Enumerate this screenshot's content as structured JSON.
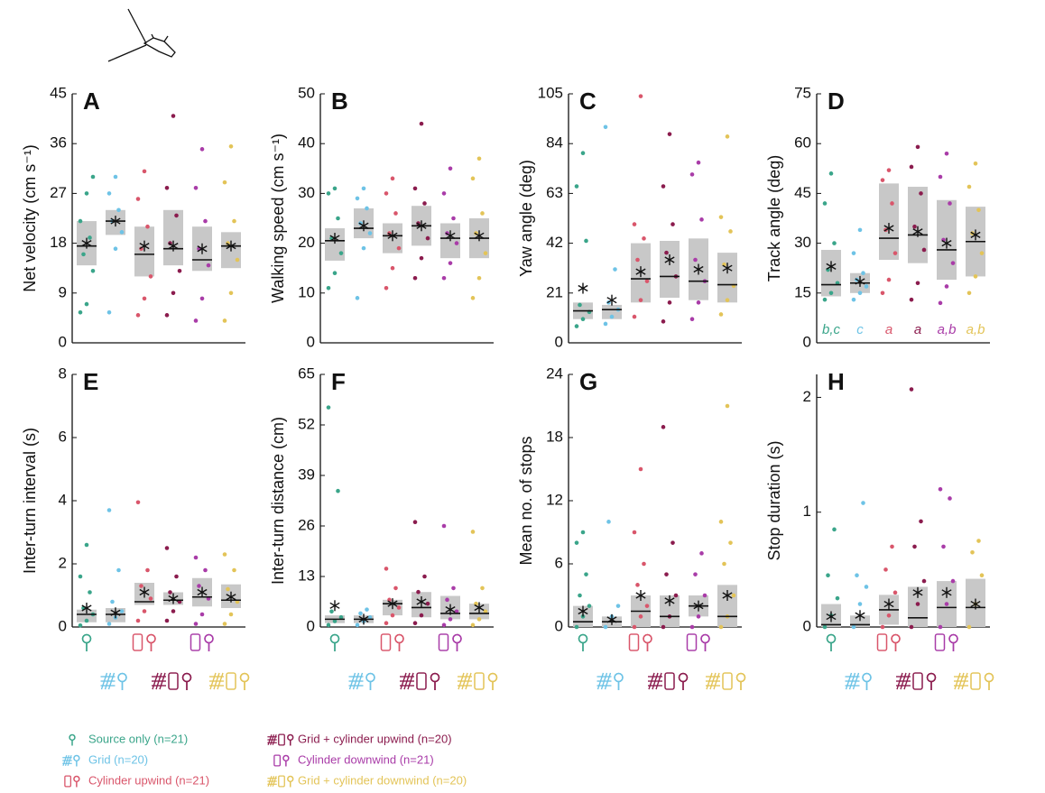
{
  "chart_data": [
    {
      "type": "box",
      "label": "A",
      "ylabel": "Net velocity (cm s⁻¹)",
      "ylim": [
        0,
        45
      ],
      "yticks": [
        0,
        9,
        18,
        27,
        36,
        45
      ],
      "groups": [
        {
          "q1": 14,
          "median": 17.5,
          "q3": 22,
          "mean": 18,
          "points": [
            5.5,
            7,
            13,
            16,
            19,
            22,
            27,
            30
          ]
        },
        {
          "q1": 19.5,
          "median": 22,
          "q3": 24,
          "mean": 22,
          "points": [
            5.5,
            17,
            20,
            22,
            24,
            27,
            30
          ]
        },
        {
          "q1": 12,
          "median": 16,
          "q3": 21,
          "mean": 17.5,
          "points": [
            5,
            8,
            12,
            17,
            21,
            26,
            31
          ]
        },
        {
          "q1": 14,
          "median": 17,
          "q3": 24,
          "mean": 17.5,
          "points": [
            5,
            9,
            13,
            18,
            23,
            28,
            41
          ]
        },
        {
          "q1": 13,
          "median": 15,
          "q3": 21,
          "mean": 17,
          "points": [
            4,
            8,
            14,
            17,
            22,
            28,
            35
          ]
        },
        {
          "q1": 13.5,
          "median": 17.5,
          "q3": 20,
          "mean": 17.5,
          "points": [
            4,
            9,
            15,
            18,
            22,
            29,
            35.5
          ]
        }
      ]
    },
    {
      "type": "box",
      "label": "B",
      "ylabel": "Walking speed (cm s⁻¹)",
      "ylim": [
        0,
        50
      ],
      "yticks": [
        0,
        10,
        20,
        30,
        40,
        50
      ],
      "groups": [
        {
          "q1": 16.5,
          "median": 20.5,
          "q3": 23,
          "mean": 21,
          "points": [
            11,
            14,
            18,
            21,
            25,
            30,
            31
          ]
        },
        {
          "q1": 21,
          "median": 23,
          "q3": 27,
          "mean": 23.5,
          "points": [
            9,
            19,
            22,
            24,
            27,
            29,
            31
          ]
        },
        {
          "q1": 18,
          "median": 21.5,
          "q3": 24,
          "mean": 21.5,
          "points": [
            11,
            15,
            19,
            22,
            26,
            30,
            33
          ]
        },
        {
          "q1": 19.5,
          "median": 23.5,
          "q3": 27.5,
          "mean": 23.5,
          "points": [
            13,
            17,
            21,
            24,
            28,
            31,
            44
          ]
        },
        {
          "q1": 17,
          "median": 21,
          "q3": 24,
          "mean": 21.5,
          "points": [
            13,
            16,
            20,
            22,
            25,
            30,
            35
          ]
        },
        {
          "q1": 17,
          "median": 21,
          "q3": 25,
          "mean": 21.5,
          "points": [
            9,
            13,
            18,
            22,
            26,
            33,
            37
          ]
        }
      ]
    },
    {
      "type": "box",
      "label": "C",
      "ylabel": "Yaw angle (deg)",
      "ylim": [
        0,
        105
      ],
      "yticks": [
        0,
        21,
        42,
        63,
        84,
        105
      ],
      "groups": [
        {
          "q1": 10,
          "median": 13.5,
          "q3": 17,
          "mean": 23,
          "points": [
            7,
            10,
            13,
            16,
            43,
            66,
            80
          ]
        },
        {
          "q1": 10,
          "median": 14,
          "q3": 16,
          "mean": 18,
          "points": [
            8,
            11,
            14,
            17,
            31,
            91
          ]
        },
        {
          "q1": 17,
          "median": 27,
          "q3": 42,
          "mean": 30,
          "points": [
            11,
            18,
            26,
            35,
            44,
            50,
            104
          ]
        },
        {
          "q1": 19,
          "median": 28,
          "q3": 43,
          "mean": 35,
          "points": [
            9,
            17,
            28,
            38,
            50,
            66,
            88
          ]
        },
        {
          "q1": 18,
          "median": 26,
          "q3": 44,
          "mean": 31,
          "points": [
            10,
            17,
            26,
            35,
            52,
            71,
            76
          ]
        },
        {
          "q1": 17,
          "median": 24.5,
          "q3": 38,
          "mean": 31.5,
          "points": [
            12,
            18,
            24,
            33,
            47,
            53,
            87
          ]
        }
      ]
    },
    {
      "type": "box",
      "label": "D",
      "ylabel": "Track angle (deg)",
      "ylim": [
        0,
        75
      ],
      "yticks": [
        0,
        15,
        30,
        45,
        60,
        75
      ],
      "letters": [
        "b,c",
        "c",
        "a",
        "a",
        "a,b",
        "a,b"
      ],
      "groups": [
        {
          "q1": 14,
          "median": 17.5,
          "q3": 28,
          "mean": 23,
          "points": [
            13,
            15,
            18,
            22,
            30,
            42,
            51
          ]
        },
        {
          "q1": 15,
          "median": 18,
          "q3": 21,
          "mean": 18.5,
          "points": [
            13,
            15,
            17,
            19,
            21,
            27,
            34
          ]
        },
        {
          "q1": 25,
          "median": 31.5,
          "q3": 48,
          "mean": 34.5,
          "points": [
            15,
            19,
            27,
            34,
            42,
            49,
            52
          ]
        },
        {
          "q1": 24,
          "median": 32.5,
          "q3": 47,
          "mean": 33.5,
          "points": [
            13,
            18,
            28,
            35,
            45,
            53,
            59
          ]
        },
        {
          "q1": 19,
          "median": 28,
          "q3": 43,
          "mean": 30,
          "points": [
            12,
            17,
            24,
            31,
            42,
            50,
            57
          ]
        },
        {
          "q1": 20,
          "median": 30.5,
          "q3": 41,
          "mean": 32.5,
          "points": [
            15,
            20,
            27,
            33,
            40,
            47,
            54
          ]
        }
      ]
    },
    {
      "type": "box",
      "label": "E",
      "ylabel": "Inter-turn interval (s)",
      "ylim": [
        0,
        8
      ],
      "yticks": [
        0,
        2,
        4,
        6,
        8
      ],
      "groups": [
        {
          "q1": 0.15,
          "median": 0.4,
          "q3": 0.55,
          "mean": 0.6,
          "points": [
            0.05,
            0.2,
            0.4,
            0.6,
            1.1,
            1.6,
            2.6
          ]
        },
        {
          "q1": 0.15,
          "median": 0.4,
          "q3": 0.6,
          "mean": 0.45,
          "points": [
            0.1,
            0.3,
            0.5,
            0.8,
            1.8,
            3.7
          ]
        },
        {
          "q1": 0.7,
          "median": 0.8,
          "q3": 1.4,
          "mean": 1.1,
          "points": [
            0.2,
            0.5,
            0.9,
            1.3,
            1.8,
            3.95
          ]
        },
        {
          "q1": 0.7,
          "median": 0.85,
          "q3": 1.1,
          "mean": 0.9,
          "points": [
            0.2,
            0.5,
            0.8,
            1.1,
            1.6,
            2.5
          ]
        },
        {
          "q1": 0.65,
          "median": 0.95,
          "q3": 1.55,
          "mean": 1.1,
          "points": [
            0.1,
            0.4,
            0.9,
            1.3,
            1.8,
            2.2
          ]
        },
        {
          "q1": 0.6,
          "median": 0.85,
          "q3": 1.35,
          "mean": 0.95,
          "points": [
            0.1,
            0.4,
            0.8,
            1.2,
            1.8,
            2.3
          ]
        }
      ]
    },
    {
      "type": "box",
      "label": "F",
      "ylabel": "Inter-turn distance (cm)",
      "ylim": [
        0,
        65
      ],
      "yticks": [
        0,
        13,
        26,
        39,
        52,
        65
      ],
      "groups": [
        {
          "q1": 1,
          "median": 2,
          "q3": 3,
          "mean": 5.5,
          "points": [
            0.5,
            1.5,
            2.5,
            4,
            35,
            56.5
          ]
        },
        {
          "q1": 1,
          "median": 2,
          "q3": 3,
          "mean": 2,
          "points": [
            0.5,
            1.5,
            2.5,
            3.5,
            4.5
          ]
        },
        {
          "q1": 3,
          "median": 6,
          "q3": 7,
          "mean": 6,
          "points": [
            1,
            3,
            5,
            7,
            10,
            15
          ]
        },
        {
          "q1": 2.5,
          "median": 5,
          "q3": 9,
          "mean": 6.5,
          "points": [
            1,
            3,
            6,
            9,
            13,
            27
          ]
        },
        {
          "q1": 2,
          "median": 3.5,
          "q3": 8,
          "mean": 4.5,
          "points": [
            0.5,
            2,
            4,
            7,
            10,
            26
          ]
        },
        {
          "q1": 2,
          "median": 3.5,
          "q3": 6,
          "mean": 5,
          "points": [
            0.5,
            2,
            4,
            6,
            10,
            24.5
          ]
        }
      ]
    },
    {
      "type": "box",
      "label": "G",
      "ylabel": "Mean no. of stops",
      "ylim": [
        0,
        24
      ],
      "yticks": [
        0,
        6,
        12,
        18,
        24
      ],
      "groups": [
        {
          "q1": 0,
          "median": 0.5,
          "q3": 2,
          "mean": 1.5,
          "points": [
            0,
            1,
            2,
            3,
            5,
            8,
            9
          ]
        },
        {
          "q1": 0,
          "median": 0.5,
          "q3": 1,
          "mean": 0.7,
          "points": [
            0,
            1,
            2,
            10
          ]
        },
        {
          "q1": 0,
          "median": 1.5,
          "q3": 3,
          "mean": 3,
          "points": [
            0,
            1,
            2,
            4,
            6,
            9,
            15
          ]
        },
        {
          "q1": 0,
          "median": 1,
          "q3": 3,
          "mean": 2.5,
          "points": [
            0,
            1,
            3,
            5,
            8,
            19
          ]
        },
        {
          "q1": 1,
          "median": 2,
          "q3": 3,
          "mean": 2,
          "points": [
            0,
            1,
            3,
            5,
            7
          ]
        },
        {
          "q1": 0,
          "median": 1,
          "q3": 4,
          "mean": 3,
          "points": [
            0,
            1,
            3,
            6,
            8,
            10,
            21
          ]
        }
      ]
    },
    {
      "type": "box",
      "label": "H",
      "ylabel": "Stop duration (s)",
      "ylim": [
        0,
        2.2
      ],
      "yticks": [
        0,
        1,
        2
      ],
      "groups": [
        {
          "q1": 0,
          "median": 0.02,
          "q3": 0.2,
          "mean": 0.09,
          "points": [
            0,
            0.1,
            0.25,
            0.45,
            0.85
          ]
        },
        {
          "q1": 0,
          "median": 0.02,
          "q3": 0.1,
          "mean": 0.1,
          "points": [
            0,
            0.2,
            0.35,
            0.45,
            1.08
          ]
        },
        {
          "q1": 0.02,
          "median": 0.15,
          "q3": 0.28,
          "mean": 0.2,
          "points": [
            0,
            0.1,
            0.3,
            0.5,
            0.7
          ]
        },
        {
          "q1": 0,
          "median": 0.08,
          "q3": 0.35,
          "mean": 0.3,
          "points": [
            0,
            0.2,
            0.4,
            0.7,
            0.92,
            2.07
          ]
        },
        {
          "q1": 0,
          "median": 0.17,
          "q3": 0.4,
          "mean": 0.3,
          "points": [
            0,
            0.2,
            0.4,
            0.7,
            1.12,
            1.2
          ]
        },
        {
          "q1": 0,
          "median": 0.17,
          "q3": 0.42,
          "mean": 0.2,
          "points": [
            0,
            0.2,
            0.45,
            0.65,
            0.75
          ]
        }
      ]
    }
  ],
  "legend": [
    {
      "name": "Source only (n=21)",
      "color": "#3aa58a"
    },
    {
      "name": "Grid (n=20)",
      "color": "#6ec3e6"
    },
    {
      "name": "Cylinder upwind (n=21)",
      "color": "#d9566b"
    },
    {
      "name": "Grid + cylinder upwind (n=20)",
      "color": "#8b1c4e"
    },
    {
      "name": "Cylinder downwind (n=21)",
      "color": "#a93ca8"
    },
    {
      "name": "Grid + cylinder downwind (n=20)",
      "color": "#e3c458"
    }
  ]
}
